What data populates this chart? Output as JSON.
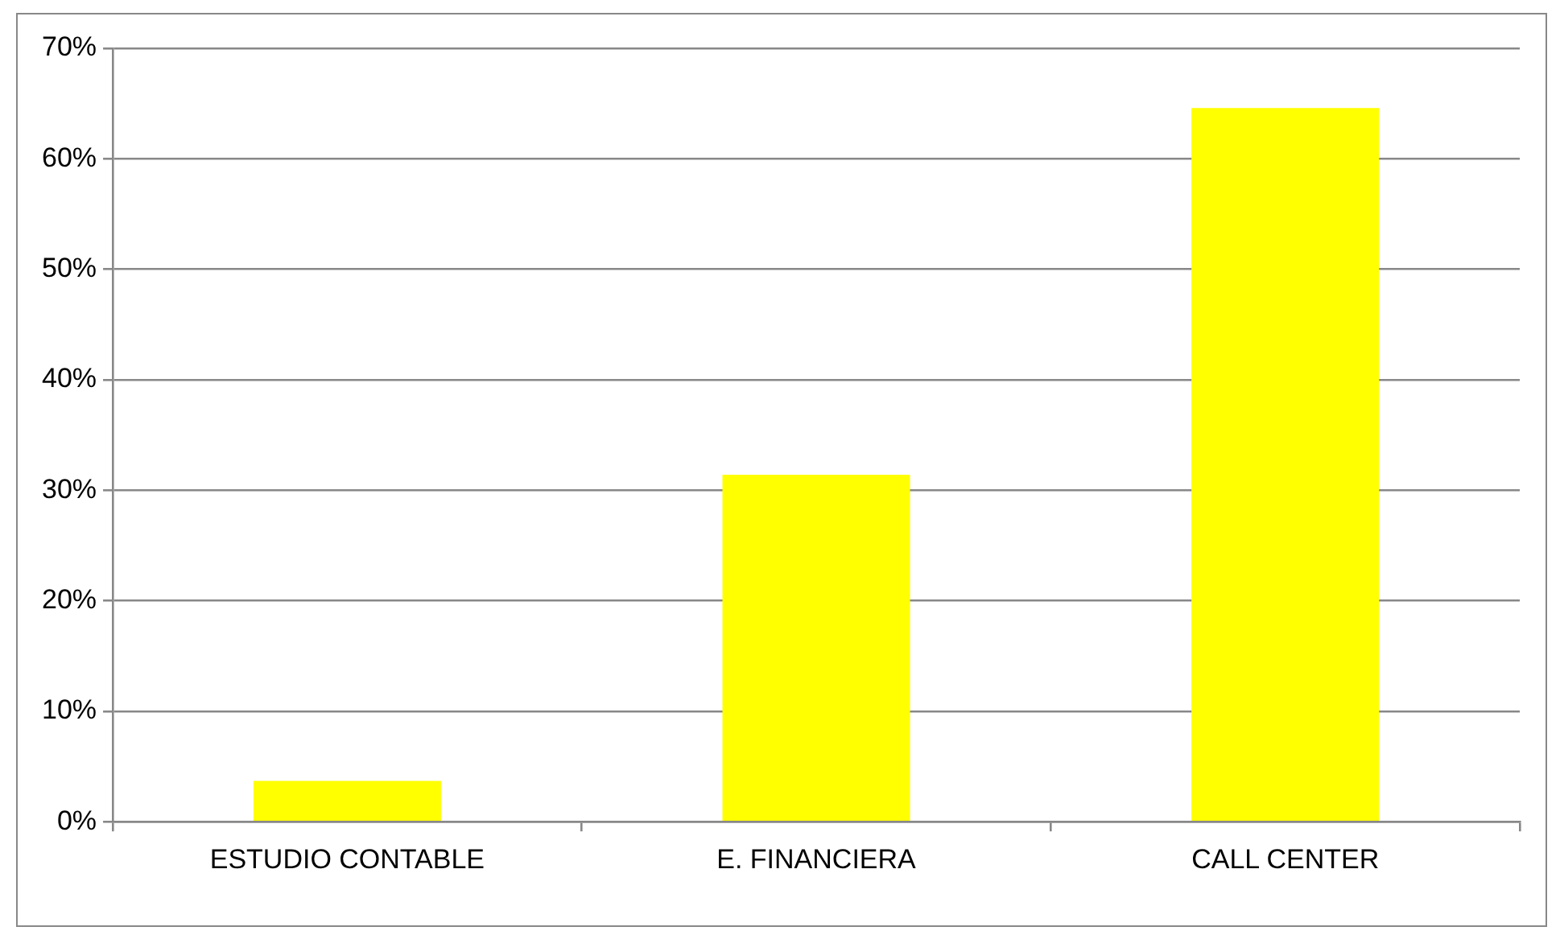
{
  "chart_data": {
    "type": "bar",
    "categories": [
      "ESTUDIO CONTABLE",
      "E. FINANCIERA",
      "CALL CENTER"
    ],
    "values": [
      3.7,
      31.4,
      64.6
    ],
    "color": "#ffff00",
    "ylim": [
      0,
      70
    ],
    "yticks": [
      {
        "value": 0,
        "label": "0%"
      },
      {
        "value": 10,
        "label": "10%"
      },
      {
        "value": 20,
        "label": "20%"
      },
      {
        "value": 30,
        "label": "30%"
      },
      {
        "value": 40,
        "label": "40%"
      },
      {
        "value": 50,
        "label": "50%"
      },
      {
        "value": 60,
        "label": "60%"
      },
      {
        "value": 70,
        "label": "70%"
      }
    ],
    "grid": "y",
    "legend": false
  }
}
